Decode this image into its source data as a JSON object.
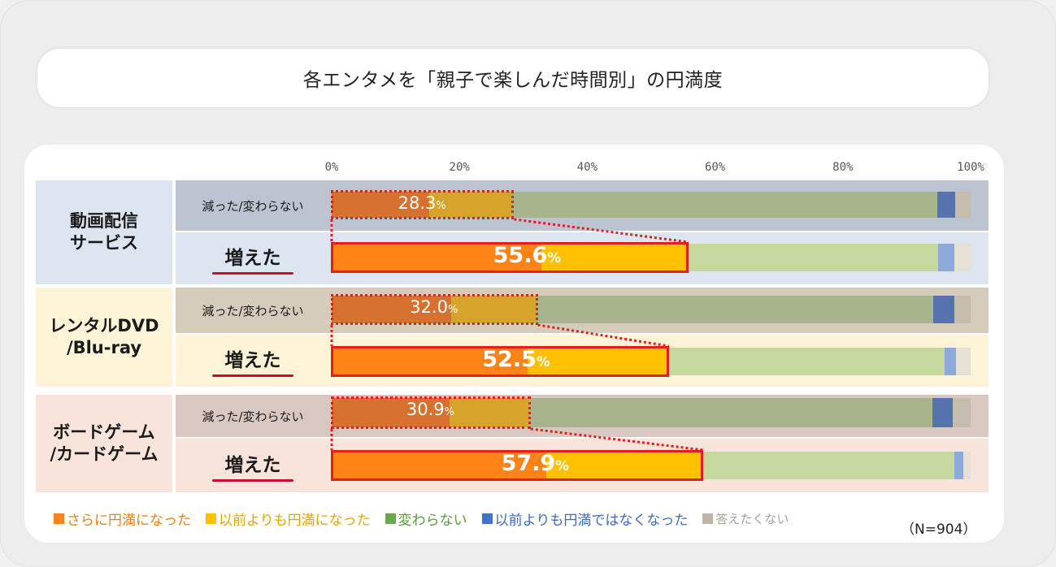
{
  "title": "各エンタメを「親子で楽しんだ時間別」の円満度",
  "sample_note": "（N=904）",
  "chart_data": {
    "type": "bar",
    "stacked": true,
    "orientation": "horizontal",
    "title": "各エンタメを「親子で楽しんだ時間別」の円満度",
    "xlim": [
      0,
      100
    ],
    "x_ticks": [
      "0%",
      "20%",
      "40%",
      "60%",
      "80%",
      "100%"
    ],
    "highlight_suffix": "%",
    "legend_placement": "bottom",
    "legend": [
      {
        "label": "さらに円満になった",
        "color": "#f5841f",
        "text_color": "#f07f0a"
      },
      {
        "label": "以前よりも円満になった",
        "color": "#ffc000",
        "text_color": "#e3a600"
      },
      {
        "label": "変わらない",
        "color": "#6aa84f",
        "text_color": "#5a9b3a"
      },
      {
        "label": "以前よりも円満ではなくなった",
        "color": "#4472c4",
        "text_color": "#3e6bbd"
      },
      {
        "label": "答えたくない",
        "color": "#bfb4a5",
        "text_color": "#a8a096"
      }
    ],
    "groups": [
      {
        "name_lines": [
          "動画配信",
          "サービス"
        ],
        "rows": [
          {
            "label": "減った/変わらない",
            "highlight": "28.3",
            "values": [
              15.3,
              13.0,
              66.5,
              2.8,
              2.4
            ]
          },
          {
            "label": "増えた",
            "highlight": "55.6",
            "values": [
              32.8,
              22.8,
              39.3,
              2.6,
              2.5
            ]
          }
        ]
      },
      {
        "name_lines": [
          "レンタルDVD",
          "/Blu-ray"
        ],
        "rows": [
          {
            "label": "減った/変わらない",
            "highlight": "32.0",
            "values": [
              18.7,
              13.3,
              62.2,
              3.2,
              2.6
            ]
          },
          {
            "label": "増えた",
            "highlight": "52.5",
            "values": [
              30.6,
              21.9,
              43.4,
              1.8,
              2.3
            ]
          }
        ]
      },
      {
        "name_lines": [
          "ボードゲーム",
          "/カードゲーム"
        ],
        "rows": [
          {
            "label": "減った/変わらない",
            "highlight": "30.9",
            "values": [
              18.5,
              12.4,
              63.1,
              3.2,
              2.8
            ]
          },
          {
            "label": "増えた",
            "highlight": "57.9",
            "values": [
              33.6,
              24.3,
              39.5,
              1.4,
              1.2
            ]
          }
        ]
      }
    ]
  },
  "theme": {
    "group_bg": [
      "#dde5f1",
      "#fdf3d7",
      "#f9e4db"
    ],
    "dec_row_bg": [
      "#bcc4d1",
      "#d6ccbb",
      "#d9c7c1"
    ],
    "dec_colors": [
      "#d7712f",
      "#d8a32b",
      "#a8b48c",
      "#5673b0",
      "#c6bcad"
    ],
    "inc_colors": [
      "#ff8316",
      "#ffc000",
      "#c5d89e",
      "#8eaadb",
      "#e6e0d5"
    ],
    "highlight_border": "#e0201f",
    "underline": "#c8102e"
  }
}
